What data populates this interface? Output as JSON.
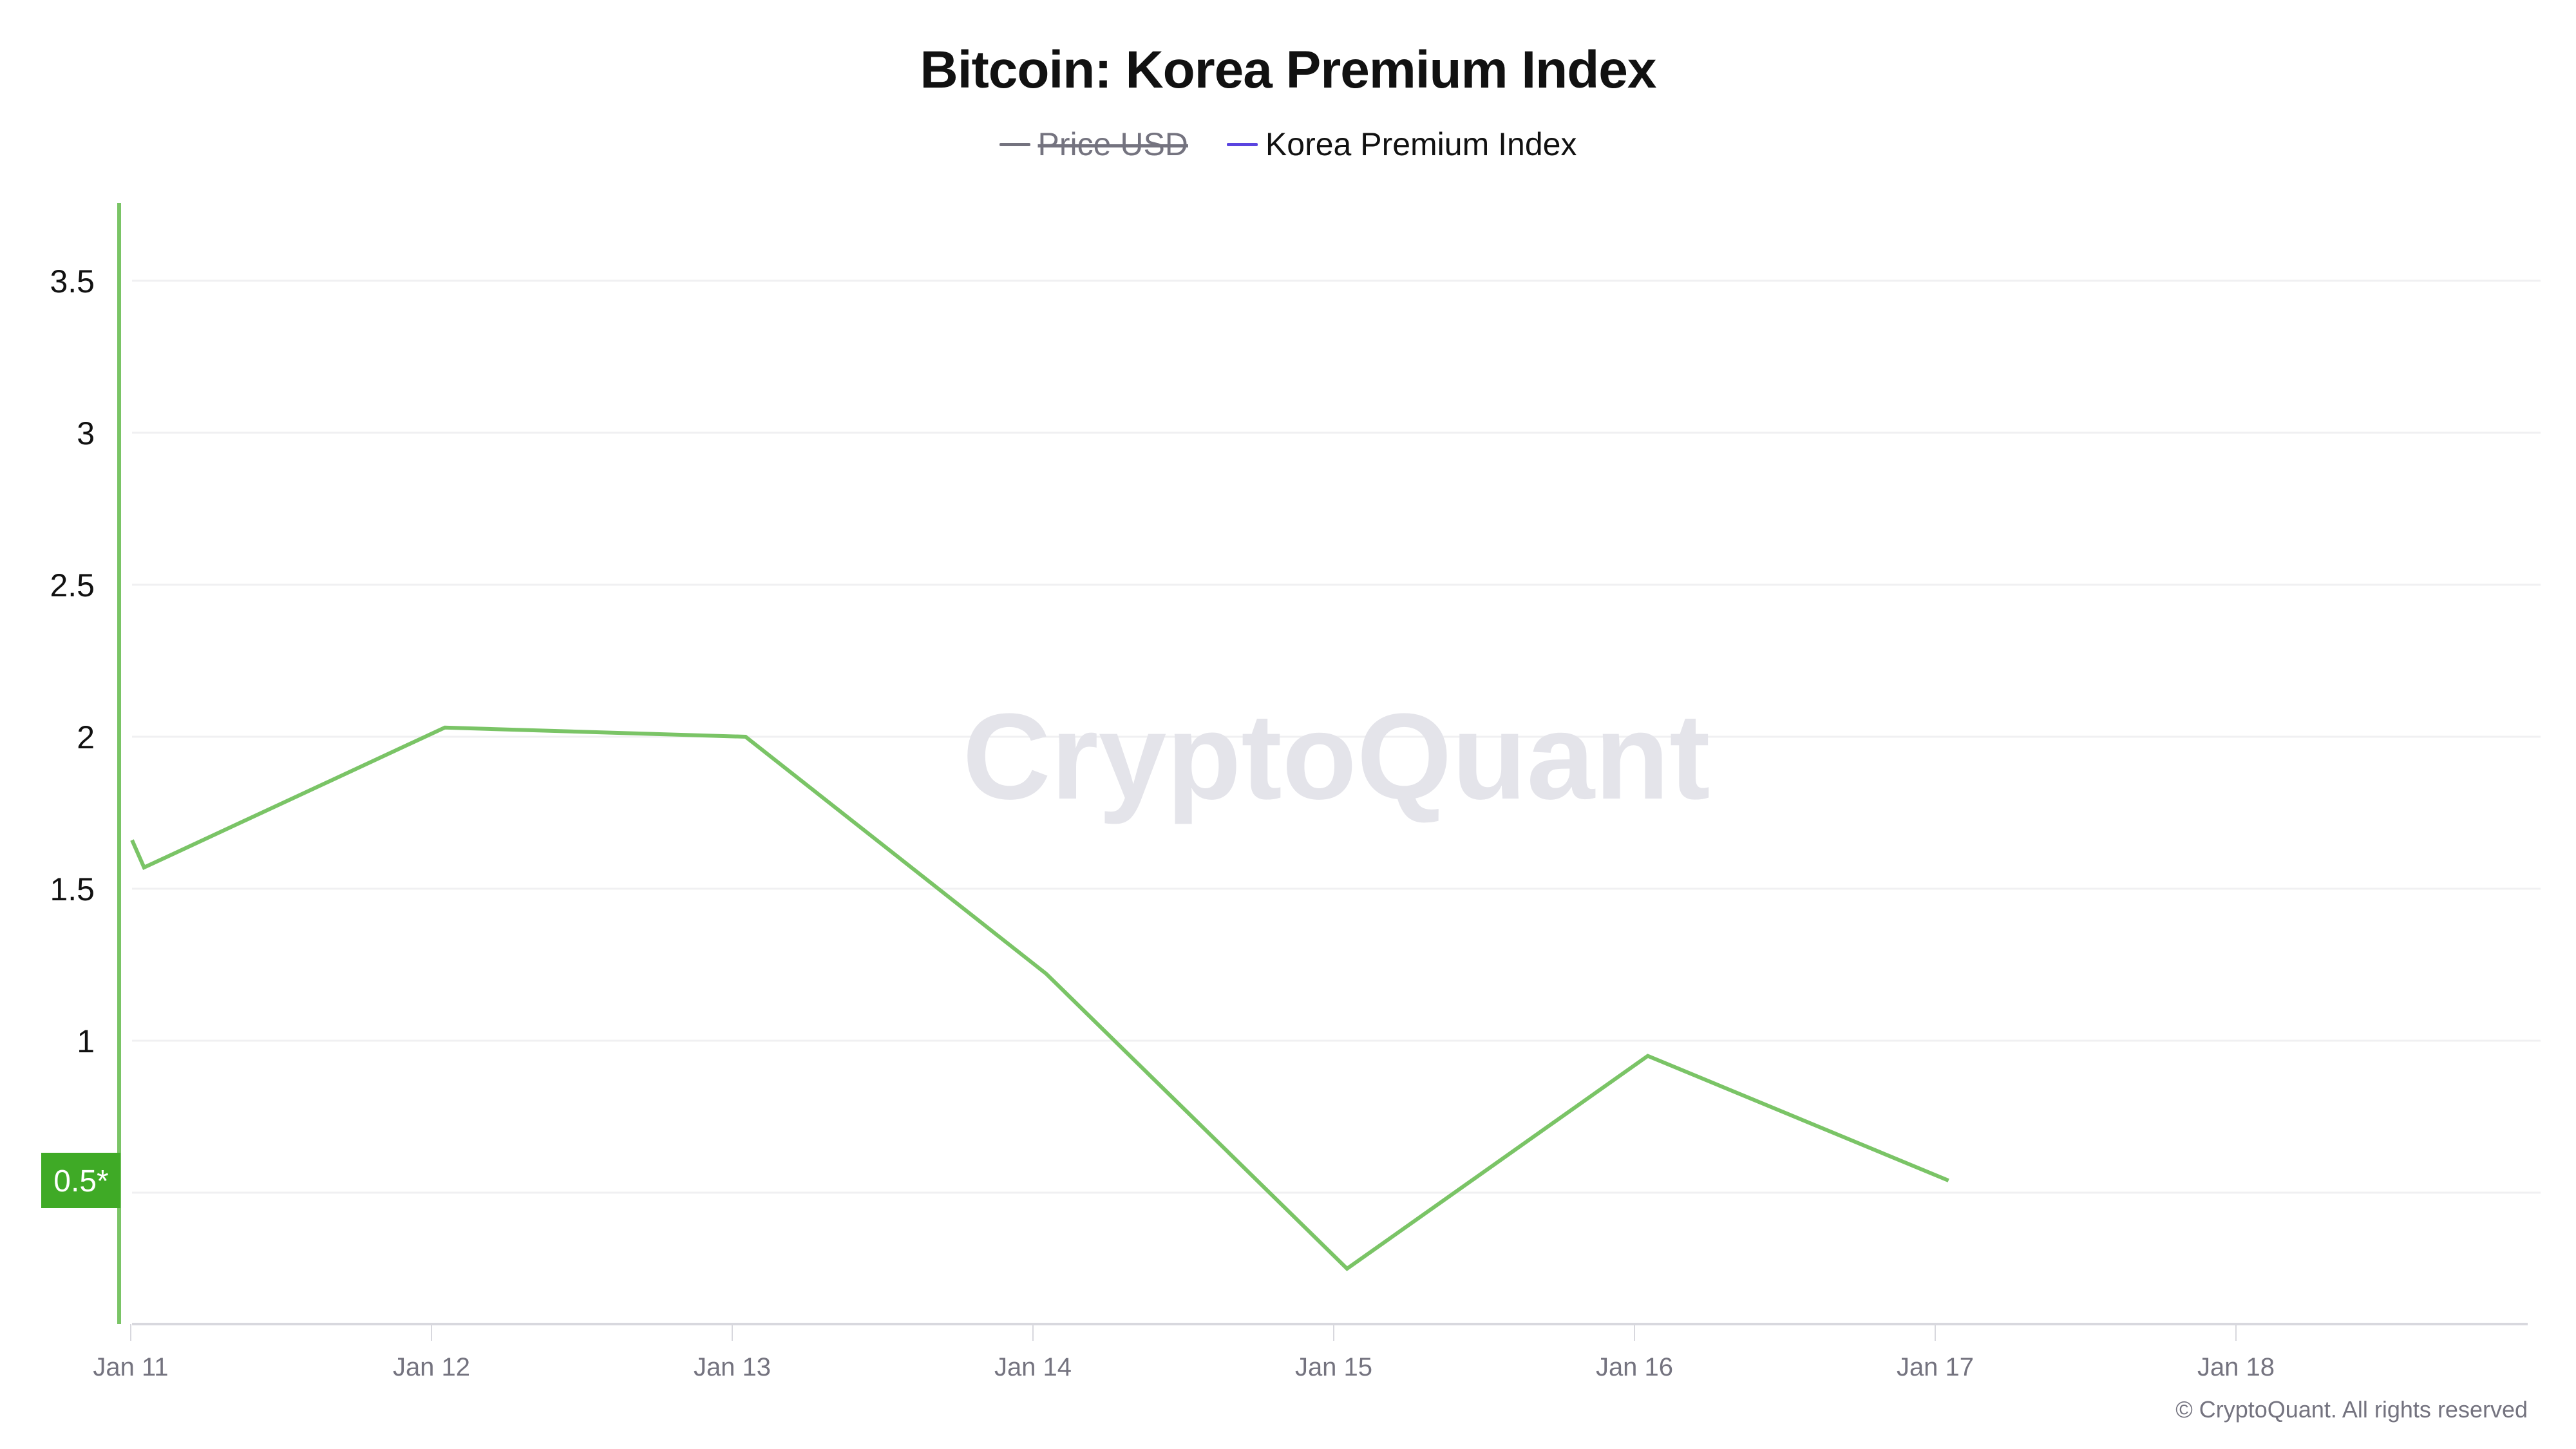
{
  "header": {
    "title": "Bitcoin: Korea Premium Index"
  },
  "legend": [
    {
      "label": "Price USD",
      "color": "#74737f",
      "hidden": true
    },
    {
      "label": "Korea Premium Index",
      "color": "#5a44e0",
      "hidden": false
    }
  ],
  "watermark": "CryptoQuant",
  "footer": {
    "copyright": "© CryptoQuant. All rights reserved"
  },
  "y_badge": {
    "label": "0.5*",
    "color": "#3faa26"
  },
  "colors": {
    "series_line": "#7ac466",
    "axis_line": "#7ac466",
    "gridline": "#f0f0f2",
    "x_axis": "#d8d8de"
  },
  "chart_data": {
    "type": "line",
    "title": "Bitcoin: Korea Premium Index",
    "xlabel": "",
    "ylabel": "",
    "legend": [
      "Price USD",
      "Korea Premium Index"
    ],
    "legend_position": "top",
    "grid": true,
    "x_ticks": [
      "Jan 11",
      "Jan 12",
      "Jan 13",
      "Jan 14",
      "Jan 15",
      "Jan 16",
      "Jan 17",
      "Jan 18"
    ],
    "y_ticks": [
      0.5,
      1,
      1.5,
      2,
      2.5,
      3,
      3.5
    ],
    "y_tick_labels": [
      "0.5*",
      "1",
      "1.5",
      "2",
      "2.5",
      "3",
      "3.5"
    ],
    "ylim": [
      0.05,
      3.75
    ],
    "series": [
      {
        "name": "Korea Premium Index",
        "x": [
          "Jan 11 00:00",
          "Jan 11 01:00",
          "Jan 12 01:00",
          "Jan 13 01:00",
          "Jan 14 01:00",
          "Jan 15 01:00",
          "Jan 16 01:00",
          "Jan 17 01:00"
        ],
        "x_index": [
          0,
          0.04,
          1.04,
          2.04,
          3.04,
          4.04,
          5.04,
          6.04
        ],
        "values": [
          1.66,
          1.57,
          2.03,
          2.0,
          1.22,
          0.25,
          0.95,
          0.54
        ]
      },
      {
        "name": "Price USD",
        "hidden": true,
        "values": []
      }
    ]
  }
}
